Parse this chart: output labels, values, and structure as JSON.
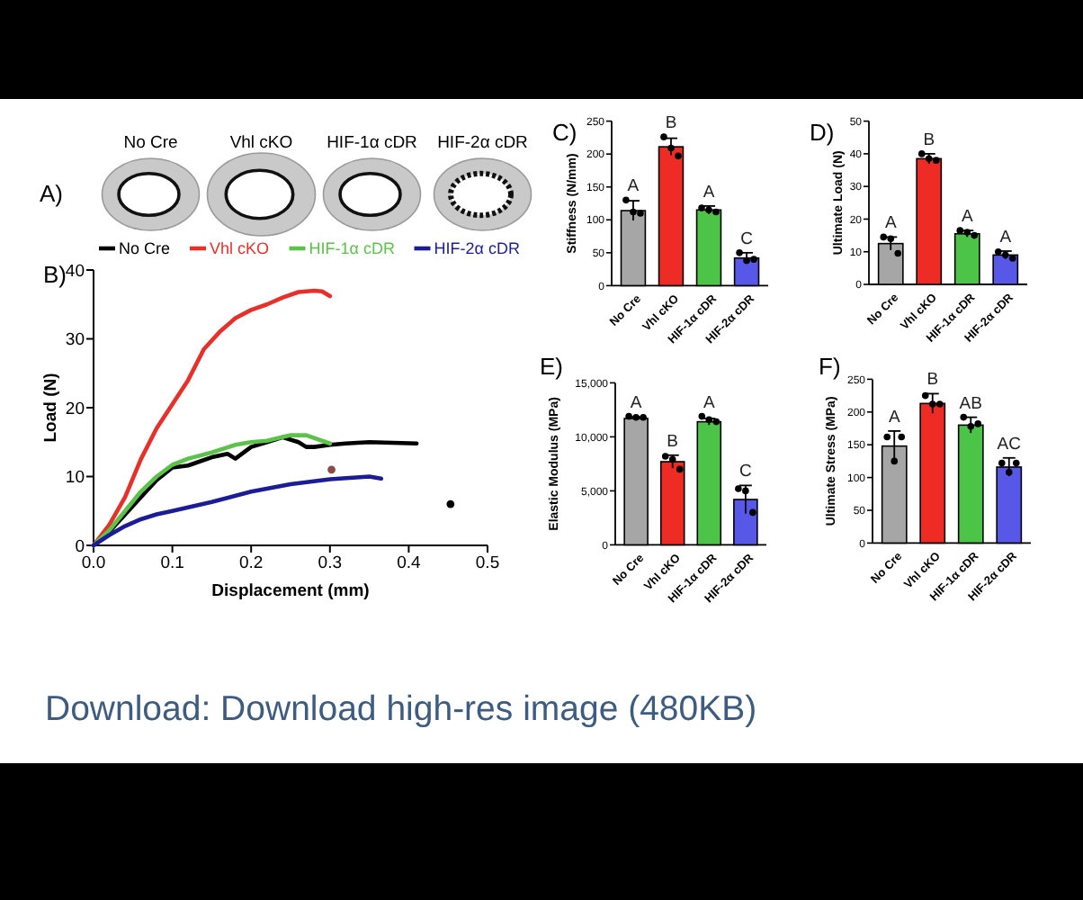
{
  "chart_data": [
    {
      "type": "other",
      "title": "A)",
      "categories": [
        "No Cre",
        "Vhl cKO",
        "HIF-1α cDR",
        "HIF-2α cDR"
      ]
    },
    {
      "type": "line",
      "title": "B)",
      "xlabel": "Displacement (mm)",
      "ylabel": "Load (N)",
      "xlim": [
        0,
        0.5
      ],
      "xticks": [
        {
          "value": 0,
          "label": "0.0"
        },
        0.1,
        0.2,
        0.3,
        0.4,
        0.5
      ],
      "ylim": [
        0,
        40
      ],
      "yticks": [
        0,
        10,
        20,
        30,
        40
      ],
      "legend": "top",
      "series": [
        {
          "name": "No Cre",
          "color": "#000000",
          "x": [
            0,
            0.02,
            0.04,
            0.06,
            0.08,
            0.1,
            0.12,
            0.15,
            0.17,
            0.18,
            0.2,
            0.22,
            0.24,
            0.26,
            0.27,
            0.28,
            0.3,
            0.32,
            0.35,
            0.38,
            0.41
          ],
          "values": [
            0,
            2,
            4.5,
            7,
            9.5,
            11.3,
            11.6,
            12.8,
            13.3,
            12.6,
            14.3,
            15,
            15.7,
            15,
            14.3,
            14.3,
            14.6,
            14.8,
            15,
            14.9,
            14.8
          ]
        },
        {
          "name": "Vhl cKO",
          "color": "#e8302a",
          "x": [
            0,
            0.02,
            0.04,
            0.06,
            0.08,
            0.1,
            0.12,
            0.14,
            0.16,
            0.18,
            0.2,
            0.22,
            0.24,
            0.26,
            0.28,
            0.29,
            0.3
          ],
          "values": [
            0,
            3,
            7,
            12.5,
            17,
            20.5,
            24,
            28.5,
            31,
            33,
            34.2,
            35,
            36,
            36.8,
            37,
            36.9,
            36.2
          ]
        },
        {
          "name": "HIF-1α cDR",
          "color": "#5cc24a",
          "x": [
            0,
            0.02,
            0.04,
            0.06,
            0.08,
            0.1,
            0.12,
            0.15,
            0.18,
            0.2,
            0.22,
            0.25,
            0.27,
            0.29,
            0.3
          ],
          "values": [
            0,
            2.2,
            5,
            7.8,
            10,
            11.7,
            12.6,
            13.5,
            14.6,
            15,
            15.2,
            16,
            16,
            15.2,
            14.8
          ]
        },
        {
          "name": "HIF-2α cDR",
          "color": "#1c1c96",
          "x": [
            0,
            0.02,
            0.04,
            0.06,
            0.08,
            0.1,
            0.15,
            0.2,
            0.25,
            0.3,
            0.35,
            0.365
          ],
          "values": [
            0,
            1.5,
            2.8,
            3.8,
            4.5,
            5,
            6.3,
            7.8,
            8.9,
            9.6,
            10,
            9.7
          ]
        },
        {
          "type": "scatter",
          "color": "#8a4a4a",
          "marker": "circle",
          "x": [
            0.302
          ],
          "values": [
            11
          ]
        },
        {
          "type": "scatter",
          "color": "#000000",
          "marker": "circle",
          "x": [
            0.453
          ],
          "values": [
            6
          ]
        }
      ]
    },
    {
      "type": "bar",
      "title": "C)",
      "ylabel": "Stiffness (N/mm)",
      "categories": [
        "No Cre",
        "Vhl cKO",
        "HIF-1α cDR",
        "HIF-2α cDR"
      ],
      "ylim": [
        0,
        250
      ],
      "yticks": [
        0,
        50,
        100,
        150,
        200,
        250
      ],
      "series": [
        {
          "type": "bar",
          "colors": [
            "#a6a6a6",
            "#ee2b25",
            "#4cc447",
            "#5757e8"
          ],
          "values": [
            114,
            211,
            115,
            42
          ],
          "errors": [
            15,
            13,
            6,
            8
          ]
        },
        {
          "type": "scatter",
          "color": "#000000",
          "marker": "circle",
          "x": [
            "No Cre",
            "No Cre",
            "No Cre",
            "Vhl cKO",
            "Vhl cKO",
            "Vhl cKO",
            "HIF-1α cDR",
            "HIF-1α cDR",
            "HIF-1α cDR",
            "HIF-2α cDR",
            "HIF-2α cDR",
            "HIF-2α cDR"
          ],
          "values": [
            130,
            112,
            110,
            226,
            209,
            197,
            118,
            115,
            112,
            50,
            38,
            40
          ]
        }
      ],
      "annotations": [
        "A",
        "B",
        "A",
        "C"
      ]
    },
    {
      "type": "bar",
      "title": "D)",
      "ylabel": "Ultimate Load (N)",
      "categories": [
        "No Cre",
        "Vhl cKO",
        "HIF-1α cDR",
        "HIF-2α cDR"
      ],
      "ylim": [
        0,
        50
      ],
      "yticks": [
        0,
        10,
        20,
        30,
        40,
        50
      ],
      "series": [
        {
          "type": "bar",
          "colors": [
            "#a6a6a6",
            "#ee2b25",
            "#4cc447",
            "#5757e8"
          ],
          "values": [
            12.5,
            38.5,
            15.5,
            9
          ],
          "errors": [
            2,
            1.5,
            1,
            1.2
          ]
        },
        {
          "type": "scatter",
          "color": "#000000",
          "marker": "circle",
          "x": [
            "No Cre",
            "No Cre",
            "No Cre",
            "Vhl cKO",
            "Vhl cKO",
            "Vhl cKO",
            "HIF-1α cDR",
            "HIF-1α cDR",
            "HIF-1α cDR",
            "HIF-2α cDR",
            "HIF-2α cDR",
            "HIF-2α cDR"
          ],
          "values": [
            14.5,
            14,
            9.5,
            40,
            38.5,
            38,
            16.5,
            16,
            15,
            10,
            9,
            8
          ]
        }
      ],
      "annotations": [
        "A",
        "B",
        "A",
        "A"
      ]
    },
    {
      "type": "bar",
      "title": "E)",
      "ylabel": "Elastic Modulus (MPa)",
      "categories": [
        "No Cre",
        "Vhl cKO",
        "HIF-1α cDR",
        "HIF-2α cDR"
      ],
      "ylim": [
        0,
        15000
      ],
      "yticks": [
        0,
        {
          "value": 5000,
          "label": "5,000"
        },
        {
          "value": 10000,
          "label": "10,000"
        },
        {
          "value": 15000,
          "label": "15,000"
        }
      ],
      "series": [
        {
          "type": "bar",
          "colors": [
            "#a6a6a6",
            "#ee2b25",
            "#4cc447",
            "#5757e8"
          ],
          "values": [
            11700,
            7700,
            11400,
            4200
          ],
          "errors": [
            150,
            600,
            300,
            1300
          ]
        },
        {
          "type": "scatter",
          "color": "#000000",
          "marker": "circle",
          "x": [
            "No Cre",
            "No Cre",
            "No Cre",
            "Vhl cKO",
            "Vhl cKO",
            "Vhl cKO",
            "HIF-1α cDR",
            "HIF-1α cDR",
            "HIF-1α cDR",
            "HIF-2α cDR",
            "HIF-2α cDR",
            "HIF-2α cDR"
          ],
          "values": [
            11900,
            11800,
            11800,
            8200,
            7900,
            7000,
            11900,
            11600,
            11400,
            5200,
            5000,
            3000
          ]
        }
      ],
      "annotations": [
        "A",
        "B",
        "A",
        "C"
      ]
    },
    {
      "type": "bar",
      "title": "F)",
      "ylabel": "Ultimate Stress (MPa)",
      "categories": [
        "No Cre",
        "Vhl cKO",
        "HIF-1α cDR",
        "HIF-2α cDR"
      ],
      "ylim": [
        0,
        250
      ],
      "yticks": [
        0,
        50,
        100,
        150,
        200,
        250
      ],
      "series": [
        {
          "type": "bar",
          "colors": [
            "#a6a6a6",
            "#ee2b25",
            "#4cc447",
            "#5757e8"
          ],
          "values": [
            148,
            213,
            180,
            116
          ],
          "errors": [
            23,
            15,
            12,
            14
          ]
        },
        {
          "type": "scatter",
          "color": "#000000",
          "marker": "circle",
          "x": [
            "No Cre",
            "No Cre",
            "No Cre",
            "Vhl cKO",
            "Vhl cKO",
            "Vhl cKO",
            "HIF-1α cDR",
            "HIF-1α cDR",
            "HIF-1α cDR",
            "HIF-2α cDR",
            "HIF-2α cDR",
            "HIF-2α cDR"
          ],
          "values": [
            162,
            125,
            162,
            225,
            212,
            212,
            192,
            178,
            182,
            122,
            108,
            122
          ]
        }
      ],
      "annotations": [
        "A",
        "B",
        "AB",
        "AC"
      ]
    },
    {
      "type": "other",
      "annotations": [
        "Download: Download high-res image (480KB)"
      ]
    }
  ]
}
